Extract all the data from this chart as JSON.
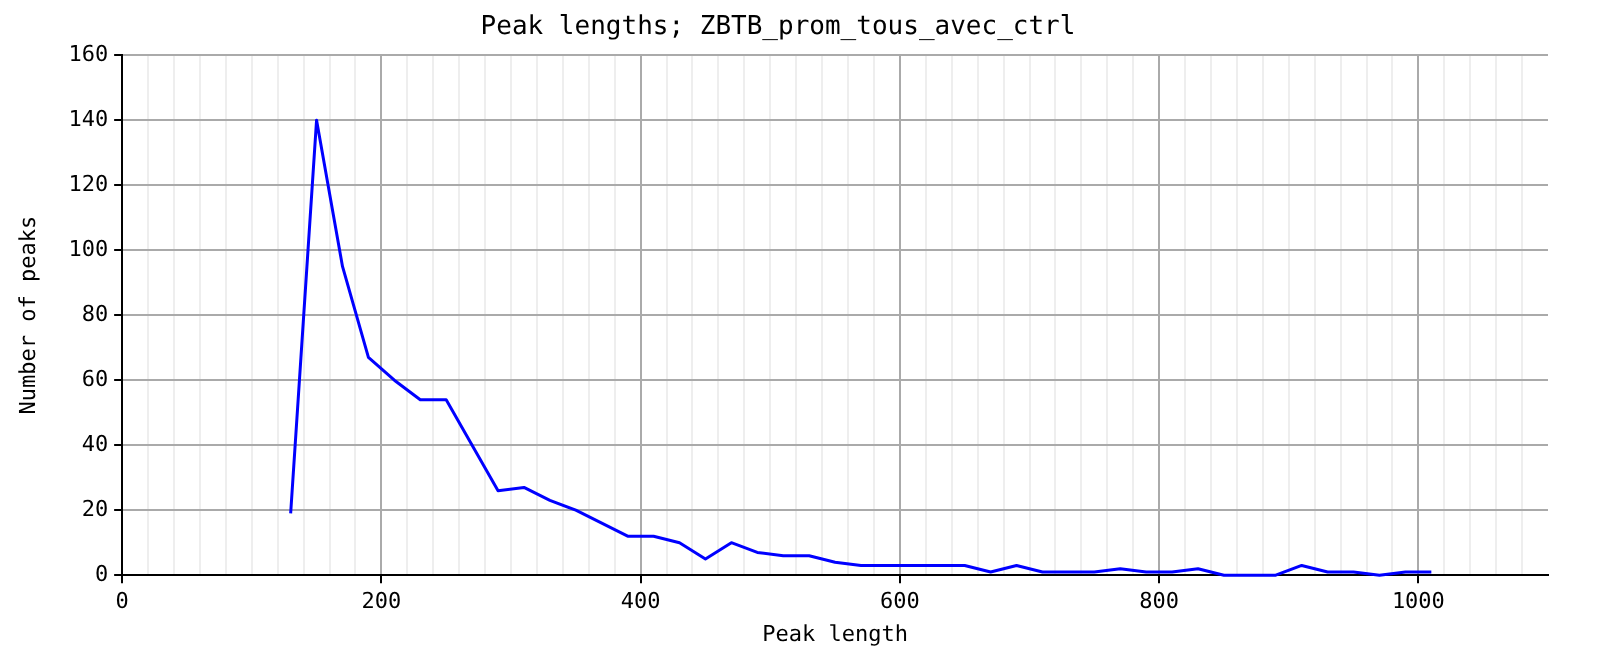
{
  "chart_data": {
    "type": "line",
    "title": "Peak lengths; ZBTB_prom_tous_avec_ctrl",
    "xlabel": "Peak length",
    "ylabel": "Number of peaks",
    "x": [
      130,
      150,
      170,
      190,
      210,
      230,
      250,
      270,
      290,
      310,
      330,
      350,
      370,
      390,
      410,
      430,
      450,
      470,
      490,
      510,
      530,
      550,
      570,
      590,
      610,
      630,
      650,
      670,
      690,
      710,
      730,
      750,
      770,
      790,
      810,
      830,
      850,
      870,
      890,
      910,
      930,
      950,
      970,
      990,
      1010
    ],
    "series": [
      {
        "color": "#0000ff",
        "values": [
          19,
          140,
          95,
          67,
          60,
          54,
          54,
          40,
          26,
          27,
          23,
          20,
          16,
          12,
          12,
          10,
          5,
          10,
          7,
          6,
          6,
          4,
          3,
          3,
          3,
          3,
          3,
          1,
          3,
          1,
          1,
          1,
          2,
          1,
          1,
          2,
          0,
          0,
          0,
          3,
          1,
          1,
          0,
          1,
          1
        ]
      }
    ],
    "xlim": [
      0,
      1100
    ],
    "xticks": [
      0,
      {
        "value": 20,
        "label": null
      },
      {
        "value": 40,
        "label": null
      },
      {
        "value": 60,
        "label": null
      },
      {
        "value": 80,
        "label": null
      },
      {
        "value": 100,
        "label": null
      },
      {
        "value": 120,
        "label": null
      },
      {
        "value": 140,
        "label": null
      },
      {
        "value": 160,
        "label": null
      },
      {
        "value": 180,
        "label": null
      },
      200,
      {
        "value": 220,
        "label": null
      },
      {
        "value": 240,
        "label": null
      },
      {
        "value": 260,
        "label": null
      },
      {
        "value": 280,
        "label": null
      },
      {
        "value": 300,
        "label": null
      },
      {
        "value": 320,
        "label": null
      },
      {
        "value": 340,
        "label": null
      },
      {
        "value": 360,
        "label": null
      },
      {
        "value": 380,
        "label": null
      },
      400,
      {
        "value": 420,
        "label": null
      },
      {
        "value": 440,
        "label": null
      },
      {
        "value": 460,
        "label": null
      },
      {
        "value": 480,
        "label": null
      },
      {
        "value": 500,
        "label": null
      },
      {
        "value": 520,
        "label": null
      },
      {
        "value": 540,
        "label": null
      },
      {
        "value": 560,
        "label": null
      },
      {
        "value": 580,
        "label": null
      },
      600,
      {
        "value": 620,
        "label": null
      },
      {
        "value": 640,
        "label": null
      },
      {
        "value": 660,
        "label": null
      },
      {
        "value": 680,
        "label": null
      },
      {
        "value": 700,
        "label": null
      },
      {
        "value": 720,
        "label": null
      },
      {
        "value": 740,
        "label": null
      },
      {
        "value": 760,
        "label": null
      },
      {
        "value": 780,
        "label": null
      },
      800,
      {
        "value": 820,
        "label": null
      },
      {
        "value": 840,
        "label": null
      },
      {
        "value": 860,
        "label": null
      },
      {
        "value": 880,
        "label": null
      },
      {
        "value": 900,
        "label": null
      },
      {
        "value": 920,
        "label": null
      },
      {
        "value": 940,
        "label": null
      },
      {
        "value": 960,
        "label": null
      },
      {
        "value": 980,
        "label": null
      },
      1000,
      {
        "value": 1020,
        "label": null
      },
      {
        "value": 1040,
        "label": null
      },
      {
        "value": 1060,
        "label": null
      },
      {
        "value": 1080,
        "label": null
      }
    ],
    "ylim": [
      0,
      160
    ],
    "yticks": [
      0,
      20,
      40,
      60,
      80,
      100,
      120,
      140,
      160
    ],
    "grid": true,
    "legend": false,
    "marker": "none",
    "line_style": "solid"
  }
}
